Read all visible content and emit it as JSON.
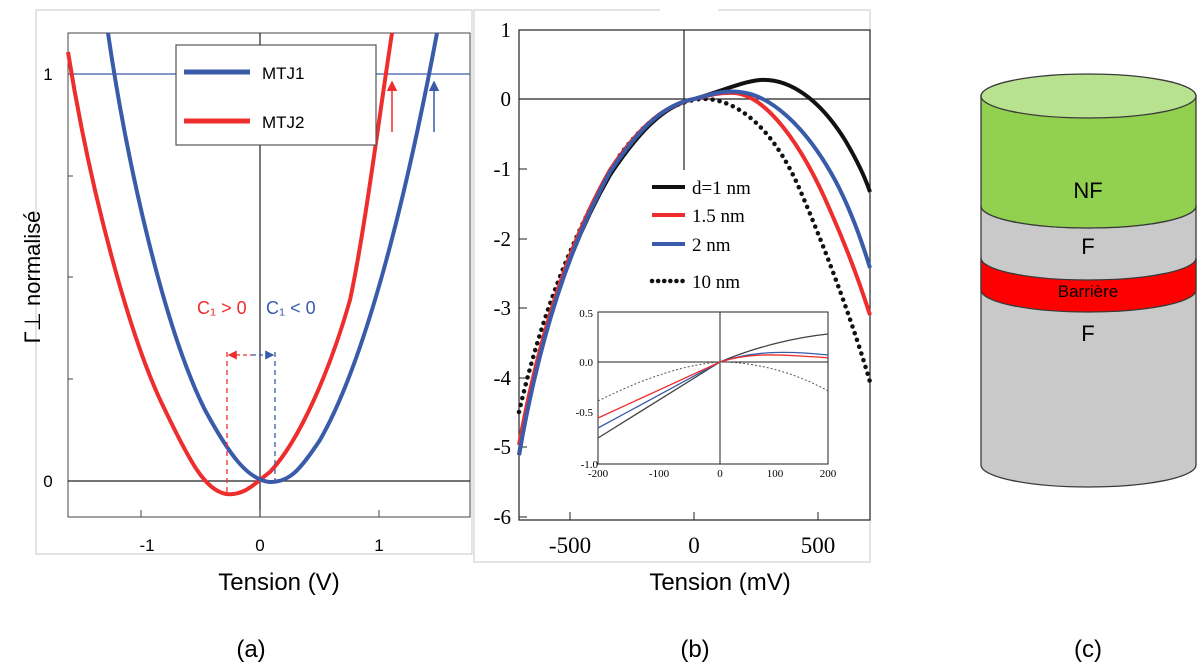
{
  "panels": {
    "a": {
      "caption": "(a)",
      "ylabel": "Γ⊥ normalisé",
      "xlabel": "Tension (V)",
      "c1_pos": "C₁ > 0",
      "c1_neg": "C₁ < 0"
    },
    "b": {
      "caption": "(b)",
      "xlabel": "Tension (mV)"
    },
    "c": {
      "caption": "(c)",
      "layers": [
        "NF",
        "F",
        "Barrière",
        "F"
      ]
    }
  },
  "chart_data": [
    {
      "type": "line",
      "panel": "a",
      "xlabel": "Tension (V)",
      "ylabel": "Γ⊥ normalisé",
      "xlim": [
        -1.65,
        1.6
      ],
      "ylim": [
        -0.1,
        1.1
      ],
      "xticks": [
        "-1",
        "0",
        "1"
      ],
      "yticks": [
        "0",
        "1"
      ],
      "reference_line_y": 1,
      "legend": "top-center",
      "series": [
        {
          "name": "MTJ1",
          "color": "#3a5baa",
          "min_x": 0.13,
          "min_y": -0.005,
          "passes_1_at_x": 1.45,
          "x": [
            -1.33,
            -1.0,
            -0.5,
            0.0,
            0.13,
            0.5,
            1.0,
            1.45
          ],
          "y": [
            1.0,
            0.65,
            0.24,
            0.02,
            -0.005,
            0.1,
            0.55,
            1.0
          ]
        },
        {
          "name": "MTJ2",
          "color": "#ee2d2d",
          "min_x": -0.28,
          "min_y": -0.04,
          "passes_1_at_x": 1.08,
          "x": [
            -1.65,
            -1.0,
            -0.5,
            -0.28,
            0.0,
            0.5,
            1.08
          ],
          "y": [
            1.02,
            0.37,
            0.01,
            -0.04,
            0.03,
            0.4,
            1.0
          ]
        }
      ],
      "annotations": [
        "C₁ > 0",
        "C₁ < 0"
      ]
    },
    {
      "type": "line",
      "panel": "b",
      "xlabel": "Tension (mV)",
      "xlim": [
        -700,
        700
      ],
      "ylim": [
        -6,
        1
      ],
      "xticks": [
        "-500",
        "0",
        "500"
      ],
      "yticks": [
        "1",
        "0",
        "-1",
        "-2",
        "-3",
        "-4",
        "-5",
        "-6"
      ],
      "legend": "center-right",
      "series": [
        {
          "name": "d=1 nm",
          "color": "#111111",
          "style": "solid",
          "x": [
            -700,
            -500,
            -300,
            0,
            100,
            210,
            350,
            500,
            700
          ],
          "y": [
            -5.15,
            -3.3,
            -1.8,
            0.0,
            0.16,
            0.28,
            0.12,
            -0.3,
            -1.3
          ]
        },
        {
          "name": "1.5 nm",
          "color": "#ee2d2d",
          "style": "solid",
          "x": [
            -700,
            -500,
            -300,
            0,
            110,
            300,
            500,
            700
          ],
          "y": [
            -5.0,
            -3.15,
            -1.65,
            0.0,
            0.1,
            -0.35,
            -1.5,
            -3.1
          ]
        },
        {
          "name": "2 nm",
          "color": "#3a5baa",
          "style": "solid",
          "x": [
            -700,
            -500,
            -300,
            0,
            120,
            300,
            500,
            700
          ],
          "y": [
            -5.2,
            -3.25,
            -1.7,
            0.0,
            0.13,
            -0.2,
            -1.1,
            -2.4
          ]
        },
        {
          "name": "10 nm",
          "color": "#111111",
          "style": "dotted",
          "x": [
            -700,
            -500,
            -300,
            -100,
            0,
            100,
            300,
            500,
            700
          ],
          "y": [
            -4.5,
            -2.7,
            -1.05,
            -0.2,
            0.0,
            -0.12,
            -0.85,
            -2.2,
            -4.1
          ]
        }
      ],
      "inset": {
        "xlim": [
          -200,
          200
        ],
        "ylim": [
          -1.0,
          0.5
        ],
        "xticks": [
          "-200",
          "-100",
          "0",
          "100",
          "200"
        ],
        "yticks": [
          "0.5",
          "0.0",
          "-0.5",
          "-1.0"
        ],
        "series": [
          {
            "name": "d=1 nm",
            "x": [
              -200,
              0,
              200
            ],
            "y": [
              -0.8,
              0.0,
              0.28
            ]
          },
          {
            "name": "1.5 nm",
            "x": [
              -200,
              0,
              100,
              200
            ],
            "y": [
              -0.6,
              0.0,
              0.07,
              0.05
            ]
          },
          {
            "name": "2 nm",
            "x": [
              -200,
              0,
              200
            ],
            "y": [
              -0.7,
              0.0,
              0.1
            ]
          },
          {
            "name": "10 nm",
            "x": [
              -200,
              0,
              200
            ],
            "y": [
              -0.4,
              0.0,
              -0.28
            ]
          }
        ]
      }
    }
  ]
}
